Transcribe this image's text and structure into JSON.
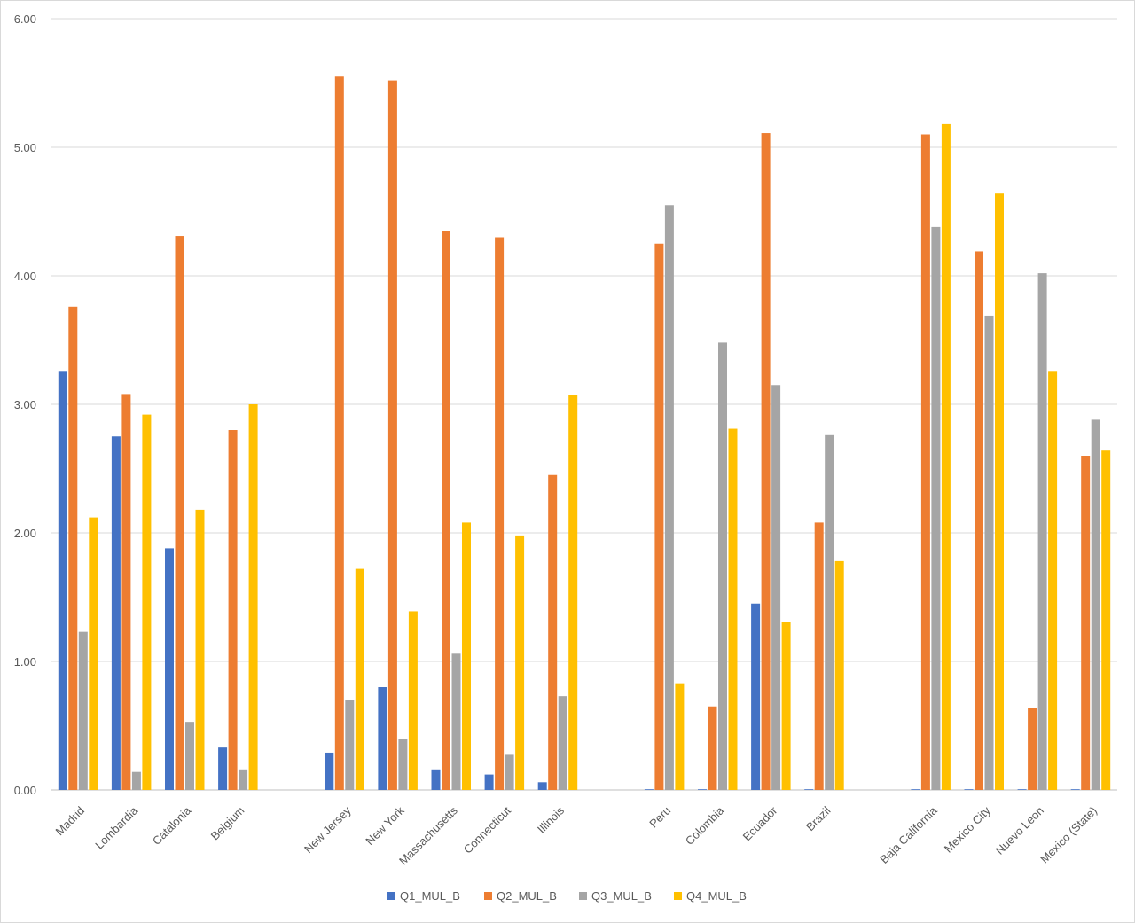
{
  "chart_data": {
    "type": "bar",
    "title": "",
    "xlabel": "",
    "ylabel": "",
    "ylim": [
      0,
      6
    ],
    "yticks": [
      "0.00",
      "1.00",
      "2.00",
      "3.00",
      "4.00",
      "5.00",
      "6.00"
    ],
    "grid": true,
    "legend_position": "bottom",
    "categories": [
      "Madrid",
      "Lombardia",
      "Catalonia",
      "Belgium",
      "",
      "New Jersey",
      "New York",
      "Massachusetts",
      "Connecticut",
      "Illinois",
      "",
      "Peru",
      "Colombia",
      "Ecuador",
      "Brazil",
      "",
      "Baja California",
      "Mexico City",
      "Nuevo Leon",
      "Mexico (State)"
    ],
    "series": [
      {
        "name": "Q1_MUL_B",
        "color": "#4472c4",
        "values": [
          3.26,
          2.75,
          1.88,
          0.33,
          null,
          0.29,
          0.8,
          0.16,
          0.12,
          0.06,
          null,
          0.0,
          0.0,
          1.45,
          0.0,
          null,
          0.0,
          0.0,
          0.0,
          0.0
        ]
      },
      {
        "name": "Q2_MUL_B",
        "color": "#ed7d31",
        "values": [
          3.76,
          3.08,
          4.31,
          2.8,
          null,
          5.55,
          5.52,
          4.35,
          4.3,
          2.45,
          null,
          4.25,
          0.65,
          5.11,
          2.08,
          null,
          5.1,
          4.19,
          0.64,
          2.6
        ]
      },
      {
        "name": "Q3_MUL_B",
        "color": "#a5a5a5",
        "values": [
          1.23,
          0.14,
          0.53,
          0.16,
          null,
          0.7,
          0.4,
          1.06,
          0.28,
          0.73,
          null,
          4.55,
          3.48,
          3.15,
          2.76,
          null,
          4.38,
          3.69,
          4.02,
          2.88
        ]
      },
      {
        "name": "Q4_MUL_B",
        "color": "#ffc000",
        "values": [
          2.12,
          2.92,
          2.18,
          3.0,
          null,
          1.72,
          1.39,
          2.08,
          1.98,
          3.07,
          null,
          0.83,
          2.81,
          1.31,
          1.78,
          null,
          5.18,
          4.64,
          3.26,
          2.64
        ]
      }
    ]
  }
}
